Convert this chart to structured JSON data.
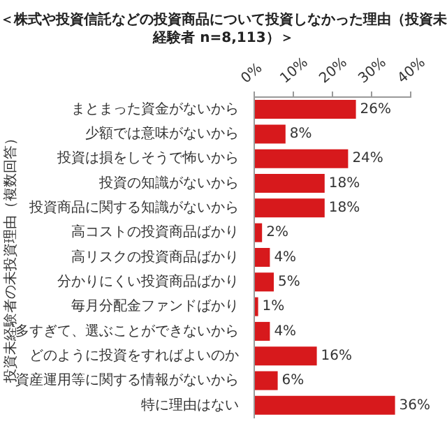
{
  "chart_data": {
    "type": "bar",
    "orientation": "horizontal",
    "title": "＜株式や投資信託などの投資商品について投資しなかった理由（投資未経験者 n=8,113）＞",
    "ylabel": "投資未経験者の未投資理由（複数回答）",
    "categories": [
      "まとまった資金がないから",
      "少額では意味がないから",
      "投資は損をしそうで怖いから",
      "投資の知識がないから",
      "投資商品に関する知識がないから",
      "高コストの投資商品ばかり",
      "高リスクの投資商品ばかり",
      "分かりにくい投資商品ばかり",
      "毎月分配金ファンドばかり",
      "多すぎて、選ぶことができないから",
      "どのように投資をすればよいのか",
      "資産運用等に関する情報がないから",
      "特に理由はない"
    ],
    "values": [
      26,
      8,
      24,
      18,
      18,
      2,
      4,
      5,
      1,
      4,
      16,
      6,
      36
    ],
    "value_labels": [
      "26%",
      "8%",
      "24%",
      "18%",
      "18%",
      "2%",
      "4%",
      "5%",
      "1%",
      "4%",
      "16%",
      "6%",
      "36%"
    ],
    "color": "#d7191c",
    "xlim": [
      0,
      40
    ],
    "xticks": [
      {
        "value": 0,
        "label": "0%"
      },
      {
        "value": 10,
        "label": "10%"
      },
      {
        "value": 20,
        "label": "20%"
      },
      {
        "value": 30,
        "label": "30%"
      },
      {
        "value": 40,
        "label": "40%"
      }
    ],
    "grid": false,
    "legend": false
  }
}
